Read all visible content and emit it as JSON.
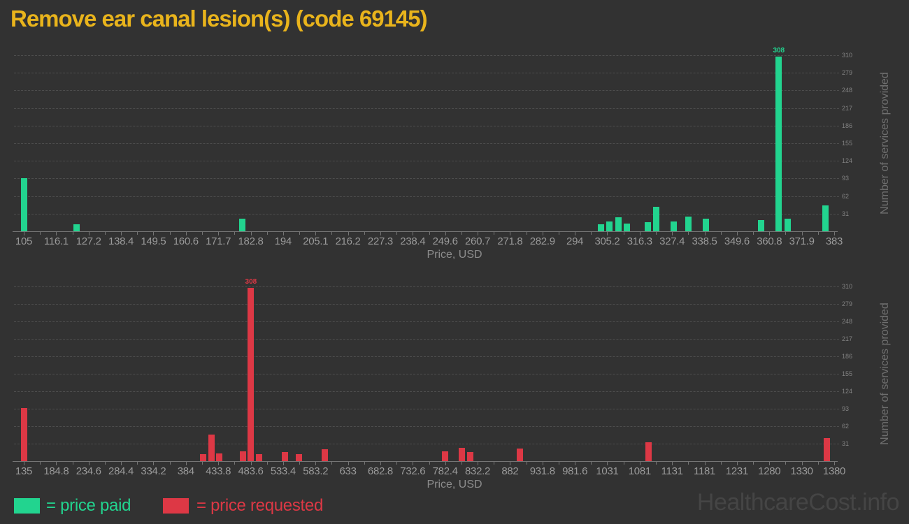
{
  "title": "Remove ear canal lesion(s) (code 69145)",
  "watermark": "HealthcareCost.info",
  "colors": {
    "background": "#323232",
    "title": "#e9b41c",
    "paid": "#22d48f",
    "requested": "#dd3845",
    "grid": "#4d4d4d",
    "axis": "#757575",
    "x_tick_label": "#9a9a9a",
    "y_tick_label": "#828282",
    "axis_title": "#8c8c8c",
    "watermark": "#454545"
  },
  "legend": {
    "paid_label": "= price paid",
    "requested_label": "= price requested",
    "position": "bottom-left"
  },
  "chart_data": [
    {
      "type": "bar",
      "name": "price-paid",
      "series_name": "price paid",
      "color_key": "paid",
      "xlabel": "Price, USD",
      "ylabel": "Number of services provided",
      "grid": true,
      "xlim": [
        105,
        383
      ],
      "ylim": [
        0,
        310
      ],
      "x_ticks": [
        105,
        116.1,
        127.2,
        138.4,
        149.5,
        160.6,
        171.7,
        182.8,
        194,
        205.1,
        216.2,
        227.3,
        238.4,
        249.6,
        260.7,
        271.8,
        282.9,
        294,
        305.2,
        316.3,
        327.4,
        338.5,
        349.6,
        360.8,
        371.9,
        383
      ],
      "y_ticks": [
        31,
        62,
        93,
        124,
        155,
        186,
        217,
        248,
        279,
        310
      ],
      "bars": [
        {
          "price": 105,
          "count": 94
        },
        {
          "price": 123,
          "count": 12
        },
        {
          "price": 180,
          "count": 22
        },
        {
          "price": 303,
          "count": 12
        },
        {
          "price": 306,
          "count": 17
        },
        {
          "price": 309,
          "count": 25
        },
        {
          "price": 312,
          "count": 14
        },
        {
          "price": 319,
          "count": 16
        },
        {
          "price": 322,
          "count": 43
        },
        {
          "price": 328,
          "count": 17
        },
        {
          "price": 333,
          "count": 26
        },
        {
          "price": 339,
          "count": 22
        },
        {
          "price": 358,
          "count": 20
        },
        {
          "price": 364,
          "count": 308,
          "label": "308"
        },
        {
          "price": 367,
          "count": 22
        },
        {
          "price": 380,
          "count": 46
        }
      ]
    },
    {
      "type": "bar",
      "name": "price-requested",
      "series_name": "price requested",
      "color_key": "requested",
      "xlabel": "Price, USD",
      "ylabel": "Number of services provided",
      "grid": true,
      "xlim": [
        135,
        1380
      ],
      "ylim": [
        0,
        310
      ],
      "x_ticks": [
        135,
        184.8,
        234.6,
        284.4,
        334.2,
        384,
        433.8,
        483.6,
        533.4,
        583.2,
        633,
        682.8,
        732.6,
        782.4,
        832.2,
        882,
        931.8,
        981.6,
        1031,
        1081,
        1131,
        1181,
        1231,
        1280,
        1330,
        1380
      ],
      "y_ticks": [
        31,
        62,
        93,
        124,
        155,
        186,
        217,
        248,
        279,
        310
      ],
      "bars": [
        {
          "price": 135,
          "count": 94
        },
        {
          "price": 410,
          "count": 12
        },
        {
          "price": 423,
          "count": 47
        },
        {
          "price": 435,
          "count": 14
        },
        {
          "price": 472,
          "count": 17
        },
        {
          "price": 484,
          "count": 308,
          "label": "308"
        },
        {
          "price": 497,
          "count": 12
        },
        {
          "price": 536,
          "count": 16
        },
        {
          "price": 558,
          "count": 12
        },
        {
          "price": 597,
          "count": 21
        },
        {
          "price": 782,
          "count": 17
        },
        {
          "price": 808,
          "count": 24
        },
        {
          "price": 821,
          "count": 16
        },
        {
          "price": 897,
          "count": 22
        },
        {
          "price": 1095,
          "count": 33
        },
        {
          "price": 1369,
          "count": 41
        }
      ]
    }
  ]
}
